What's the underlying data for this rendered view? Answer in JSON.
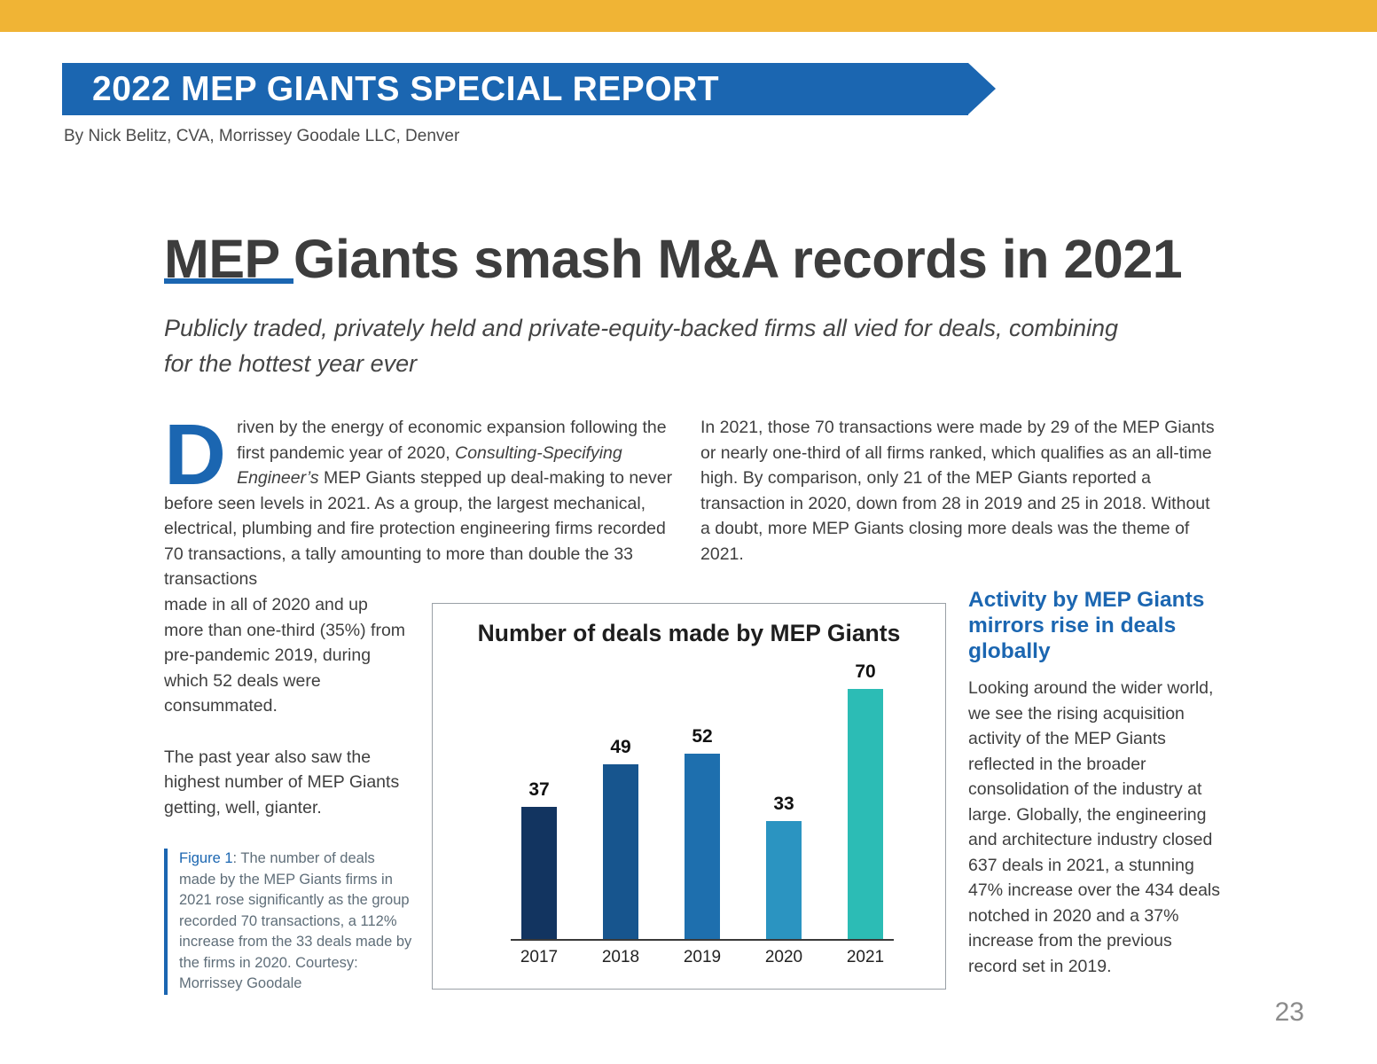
{
  "theme": {
    "gold": "#F0B435",
    "blue": "#1B66B1"
  },
  "masthead": {
    "banner_label": "2022 MEP GIANTS SPECIAL REPORT",
    "byline": "By Nick Belitz, CVA, Morrissey Goodale LLC, Denver"
  },
  "article": {
    "headline": "MEP Giants smash M&A records in 2021",
    "subtitle": "Publicly traded, privately held and private-equity-backed firms all vied for deals, combining for the hottest year ever",
    "dropcap": "D",
    "para1_before": "riven by the energy of economic expansion following the first pandemic year of 2020, ",
    "para1_italic": "Consulting-Specifying Engineer’s",
    "para1_after": " MEP Giants stepped up deal-making to never before seen levels in 2021. As a group, the largest mechanical, electrical, plumbing and fire protection engineering firms recorded 70 transactions, a tally amounting to more than double the 33 transactions",
    "para1_cont": "made in all of 2020 and up more than one-third (35%) from pre-pandemic 2019, during which 52 deals were consummated.",
    "para2": "The past year also saw the highest number of MEP Giants getting, well, gianter.",
    "right_para": "In 2021, those 70 transactions were made by 29 of the MEP Giants or nearly one-third of all firms ranked, which qualifies as an all-time high. By comparison, only 21 of the MEP Giants reported a transaction in 2020, down from 28 in 2019 and 25 in 2018. Without a doubt, more MEP Giants closing more deals was the theme of 2021."
  },
  "figure": {
    "label": "Figure 1",
    "caption": ": The number of deals made by the MEP Giants firms in 2021 rose significantly as the group recorded 70 transactions, a 112% increase from the 33 deals made by the firms in 2020. Courtesy: Morrissey Goodale"
  },
  "sidebar": {
    "heading": "Activity by MEP Giants mirrors rise in deals globally",
    "body": "Looking around the wider world, we see the rising acquisition activity of the MEP Giants reflected in the broader consolidation of the industry at large. Globally, the engineering and architecture industry closed 637 deals in 2021, a stunning 47% increase over the 434 deals notched in 2020 and a 37% increase from the previous record set in 2019."
  },
  "chart_data": {
    "type": "bar",
    "title": "Number of deals made by MEP Giants",
    "categories": [
      "2017",
      "2018",
      "2019",
      "2020",
      "2021"
    ],
    "values": [
      37,
      49,
      52,
      33,
      70
    ],
    "bar_colors": [
      "#123460",
      "#17558E",
      "#1E6FAE",
      "#2B94C1",
      "#2CBCB5"
    ],
    "ylim": [
      0,
      74
    ],
    "grid": false,
    "legend": false,
    "value_labels": true
  },
  "footer": {
    "page_number": "23"
  }
}
